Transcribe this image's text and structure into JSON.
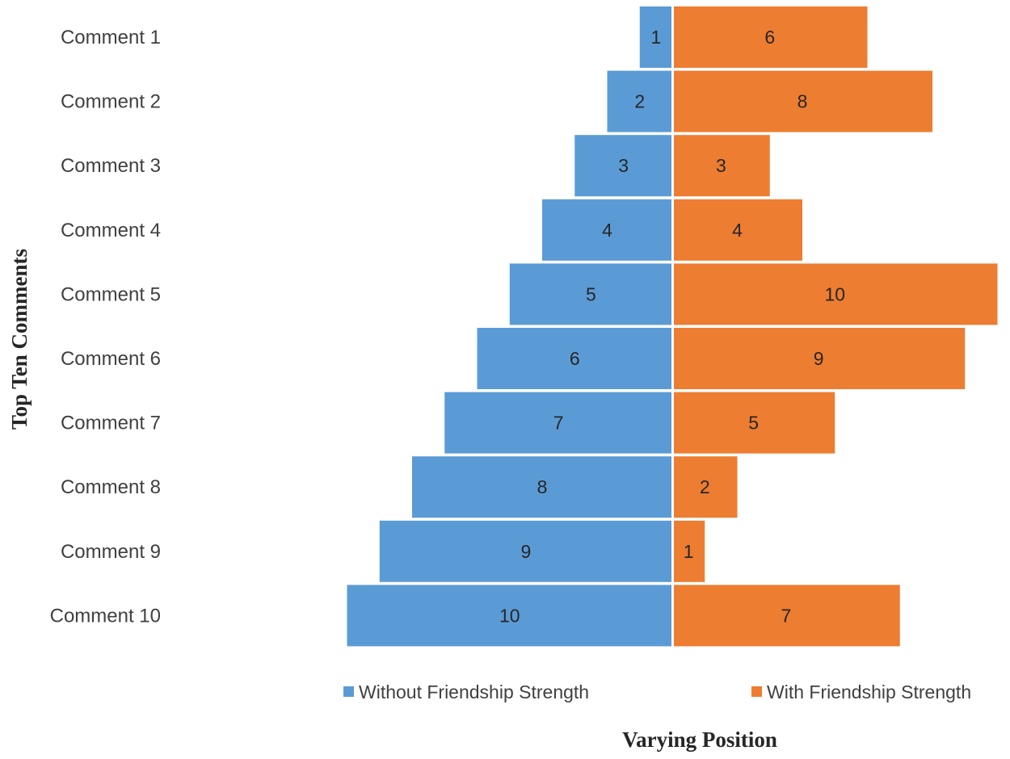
{
  "chart_data": {
    "type": "bar",
    "orientation": "horizontal",
    "layout": "diverging",
    "title": "",
    "xlabel": "Varying Position",
    "ylabel": "Top Ten Comments",
    "categories": [
      "Comment 1",
      "Comment 2",
      "Comment 3",
      "Comment 4",
      "Comment 5",
      "Comment 6",
      "Comment 7",
      "Comment 8",
      "Comment 9",
      "Comment 10"
    ],
    "series": [
      {
        "name": "Without Friendship Strength",
        "color": "#5B9BD5",
        "direction": "left",
        "values": [
          1,
          2,
          3,
          4,
          5,
          6,
          7,
          8,
          9,
          10
        ]
      },
      {
        "name": "With Friendship Strength",
        "color": "#ED7D31",
        "direction": "right",
        "values": [
          6,
          8,
          3,
          4,
          10,
          9,
          5,
          2,
          1,
          7
        ]
      }
    ],
    "xlim": [
      -10,
      10
    ],
    "data_labels": true,
    "grid": false,
    "legend_position": "bottom"
  }
}
